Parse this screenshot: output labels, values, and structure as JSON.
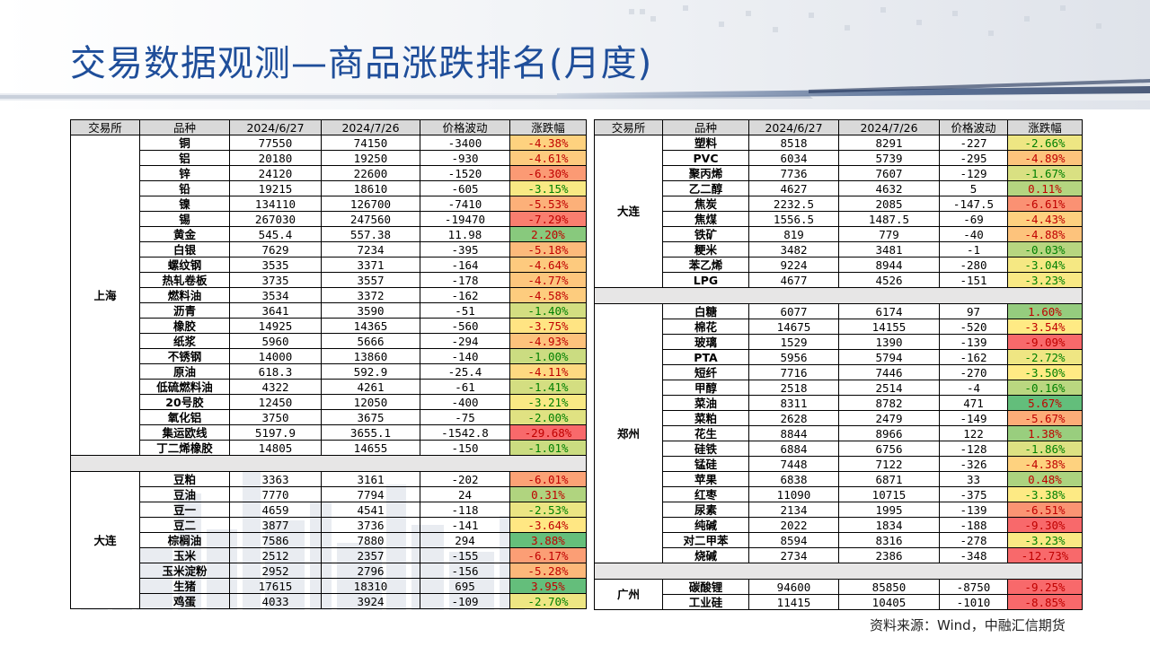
{
  "title": "交易数据观测—商品涨跌排名(月度)",
  "source": "资料来源：Wind，中融汇信期货",
  "headers": [
    "交易所",
    "品种",
    "2024/6/27",
    "2024/7/26",
    "价格波动",
    "涨跌幅"
  ],
  "left_groups": [
    {
      "exchange": "上海",
      "rows": [
        [
          "铜",
          "77550",
          "74150",
          "-3400",
          "-4.38%"
        ],
        [
          "铝",
          "20180",
          "19250",
          "-930",
          "-4.61%"
        ],
        [
          "锌",
          "24120",
          "22600",
          "-1520",
          "-6.30%"
        ],
        [
          "铅",
          "19215",
          "18610",
          "-605",
          "-3.15%"
        ],
        [
          "镍",
          "134110",
          "126700",
          "-7410",
          "-5.53%"
        ],
        [
          "锡",
          "267030",
          "247560",
          "-19470",
          "-7.29%"
        ],
        [
          "黄金",
          "545.4",
          "557.38",
          "11.98",
          "2.20%"
        ],
        [
          "白银",
          "7629",
          "7234",
          "-395",
          "-5.18%"
        ],
        [
          "螺纹钢",
          "3535",
          "3371",
          "-164",
          "-4.64%"
        ],
        [
          "热轧卷板",
          "3735",
          "3557",
          "-178",
          "-4.77%"
        ],
        [
          "燃料油",
          "3534",
          "3372",
          "-162",
          "-4.58%"
        ],
        [
          "沥青",
          "3641",
          "3590",
          "-51",
          "-1.40%"
        ],
        [
          "橡胶",
          "14925",
          "14365",
          "-560",
          "-3.75%"
        ],
        [
          "纸浆",
          "5960",
          "5666",
          "-294",
          "-4.93%"
        ],
        [
          "不锈钢",
          "14000",
          "13860",
          "-140",
          "-1.00%"
        ],
        [
          "原油",
          "618.3",
          "592.9",
          "-25.4",
          "-4.11%"
        ],
        [
          "低硫燃料油",
          "4322",
          "4261",
          "-61",
          "-1.41%"
        ],
        [
          "20号胶",
          "12450",
          "12050",
          "-400",
          "-3.21%"
        ],
        [
          "氧化铝",
          "3750",
          "3675",
          "-75",
          "-2.00%"
        ],
        [
          "集运欧线",
          "5197.9",
          "3655.1",
          "-1542.8",
          "-29.68%"
        ],
        [
          "丁二烯橡胶",
          "14805",
          "14655",
          "-150",
          "-1.01%"
        ]
      ]
    },
    {
      "exchange": "大连",
      "rows": [
        [
          "豆粕",
          "3363",
          "3161",
          "-202",
          "-6.01%"
        ],
        [
          "豆油",
          "7770",
          "7794",
          "24",
          "0.31%"
        ],
        [
          "豆一",
          "4659",
          "4541",
          "-118",
          "-2.53%"
        ],
        [
          "豆二",
          "3877",
          "3736",
          "-141",
          "-3.64%"
        ],
        [
          "棕榈油",
          "7586",
          "7880",
          "294",
          "3.88%"
        ],
        [
          "玉米",
          "2512",
          "2357",
          "-155",
          "-6.17%"
        ],
        [
          "玉米淀粉",
          "2952",
          "2796",
          "-156",
          "-5.28%"
        ],
        [
          "生猪",
          "17615",
          "18310",
          "695",
          "3.95%"
        ],
        [
          "鸡蛋",
          "4033",
          "3924",
          "-109",
          "-2.70%"
        ]
      ]
    }
  ],
  "right_groups": [
    {
      "exchange": "大连",
      "rows": [
        [
          "塑料",
          "8518",
          "8291",
          "-227",
          "-2.66%"
        ],
        [
          "PVC",
          "6034",
          "5739",
          "-295",
          "-4.89%"
        ],
        [
          "聚丙烯",
          "7736",
          "7607",
          "-129",
          "-1.67%"
        ],
        [
          "乙二醇",
          "4627",
          "4632",
          "5",
          "0.11%"
        ],
        [
          "焦炭",
          "2232.5",
          "2085",
          "-147.5",
          "-6.61%"
        ],
        [
          "焦煤",
          "1556.5",
          "1487.5",
          "-69",
          "-4.43%"
        ],
        [
          "铁矿",
          "819",
          "779",
          "-40",
          "-4.88%"
        ],
        [
          "粳米",
          "3482",
          "3481",
          "-1",
          "-0.03%"
        ],
        [
          "苯乙烯",
          "9224",
          "8944",
          "-280",
          "-3.04%"
        ],
        [
          "LPG",
          "4677",
          "4526",
          "-151",
          "-3.23%"
        ]
      ]
    },
    {
      "exchange": "郑州",
      "rows": [
        [
          "白糖",
          "6077",
          "6174",
          "97",
          "1.60%"
        ],
        [
          "棉花",
          "14675",
          "14155",
          "-520",
          "-3.54%"
        ],
        [
          "玻璃",
          "1529",
          "1390",
          "-139",
          "-9.09%"
        ],
        [
          "PTA",
          "5956",
          "5794",
          "-162",
          "-2.72%"
        ],
        [
          "短纤",
          "7716",
          "7446",
          "-270",
          "-3.50%"
        ],
        [
          "甲醇",
          "2518",
          "2514",
          "-4",
          "-0.16%"
        ],
        [
          "菜油",
          "8311",
          "8782",
          "471",
          "5.67%"
        ],
        [
          "菜粕",
          "2628",
          "2479",
          "-149",
          "-5.67%"
        ],
        [
          "花生",
          "8844",
          "8966",
          "122",
          "1.38%"
        ],
        [
          "硅铁",
          "6884",
          "6756",
          "-128",
          "-1.86%"
        ],
        [
          "锰硅",
          "7448",
          "7122",
          "-326",
          "-4.38%"
        ],
        [
          "苹果",
          "6838",
          "6871",
          "33",
          "0.48%"
        ],
        [
          "红枣",
          "11090",
          "10715",
          "-375",
          "-3.38%"
        ],
        [
          "尿素",
          "2134",
          "1995",
          "-139",
          "-6.51%"
        ],
        [
          "纯碱",
          "2022",
          "1834",
          "-188",
          "-9.30%"
        ],
        [
          "对二甲苯",
          "8594",
          "8316",
          "-278",
          "-3.23%"
        ],
        [
          "烧碱",
          "2734",
          "2386",
          "-348",
          "-12.73%"
        ]
      ]
    },
    {
      "exchange": "广州",
      "rows": [
        [
          "碳酸锂",
          "94600",
          "85850",
          "-8750",
          "-9.25%"
        ],
        [
          "工业硅",
          "11415",
          "10405",
          "-1010",
          "-8.85%"
        ]
      ]
    }
  ],
  "colors": {
    "title": "#1f4e9a",
    "max_pos": "#63be7b",
    "min_neg": "#f8696b",
    "mid": "#ffeb84"
  }
}
